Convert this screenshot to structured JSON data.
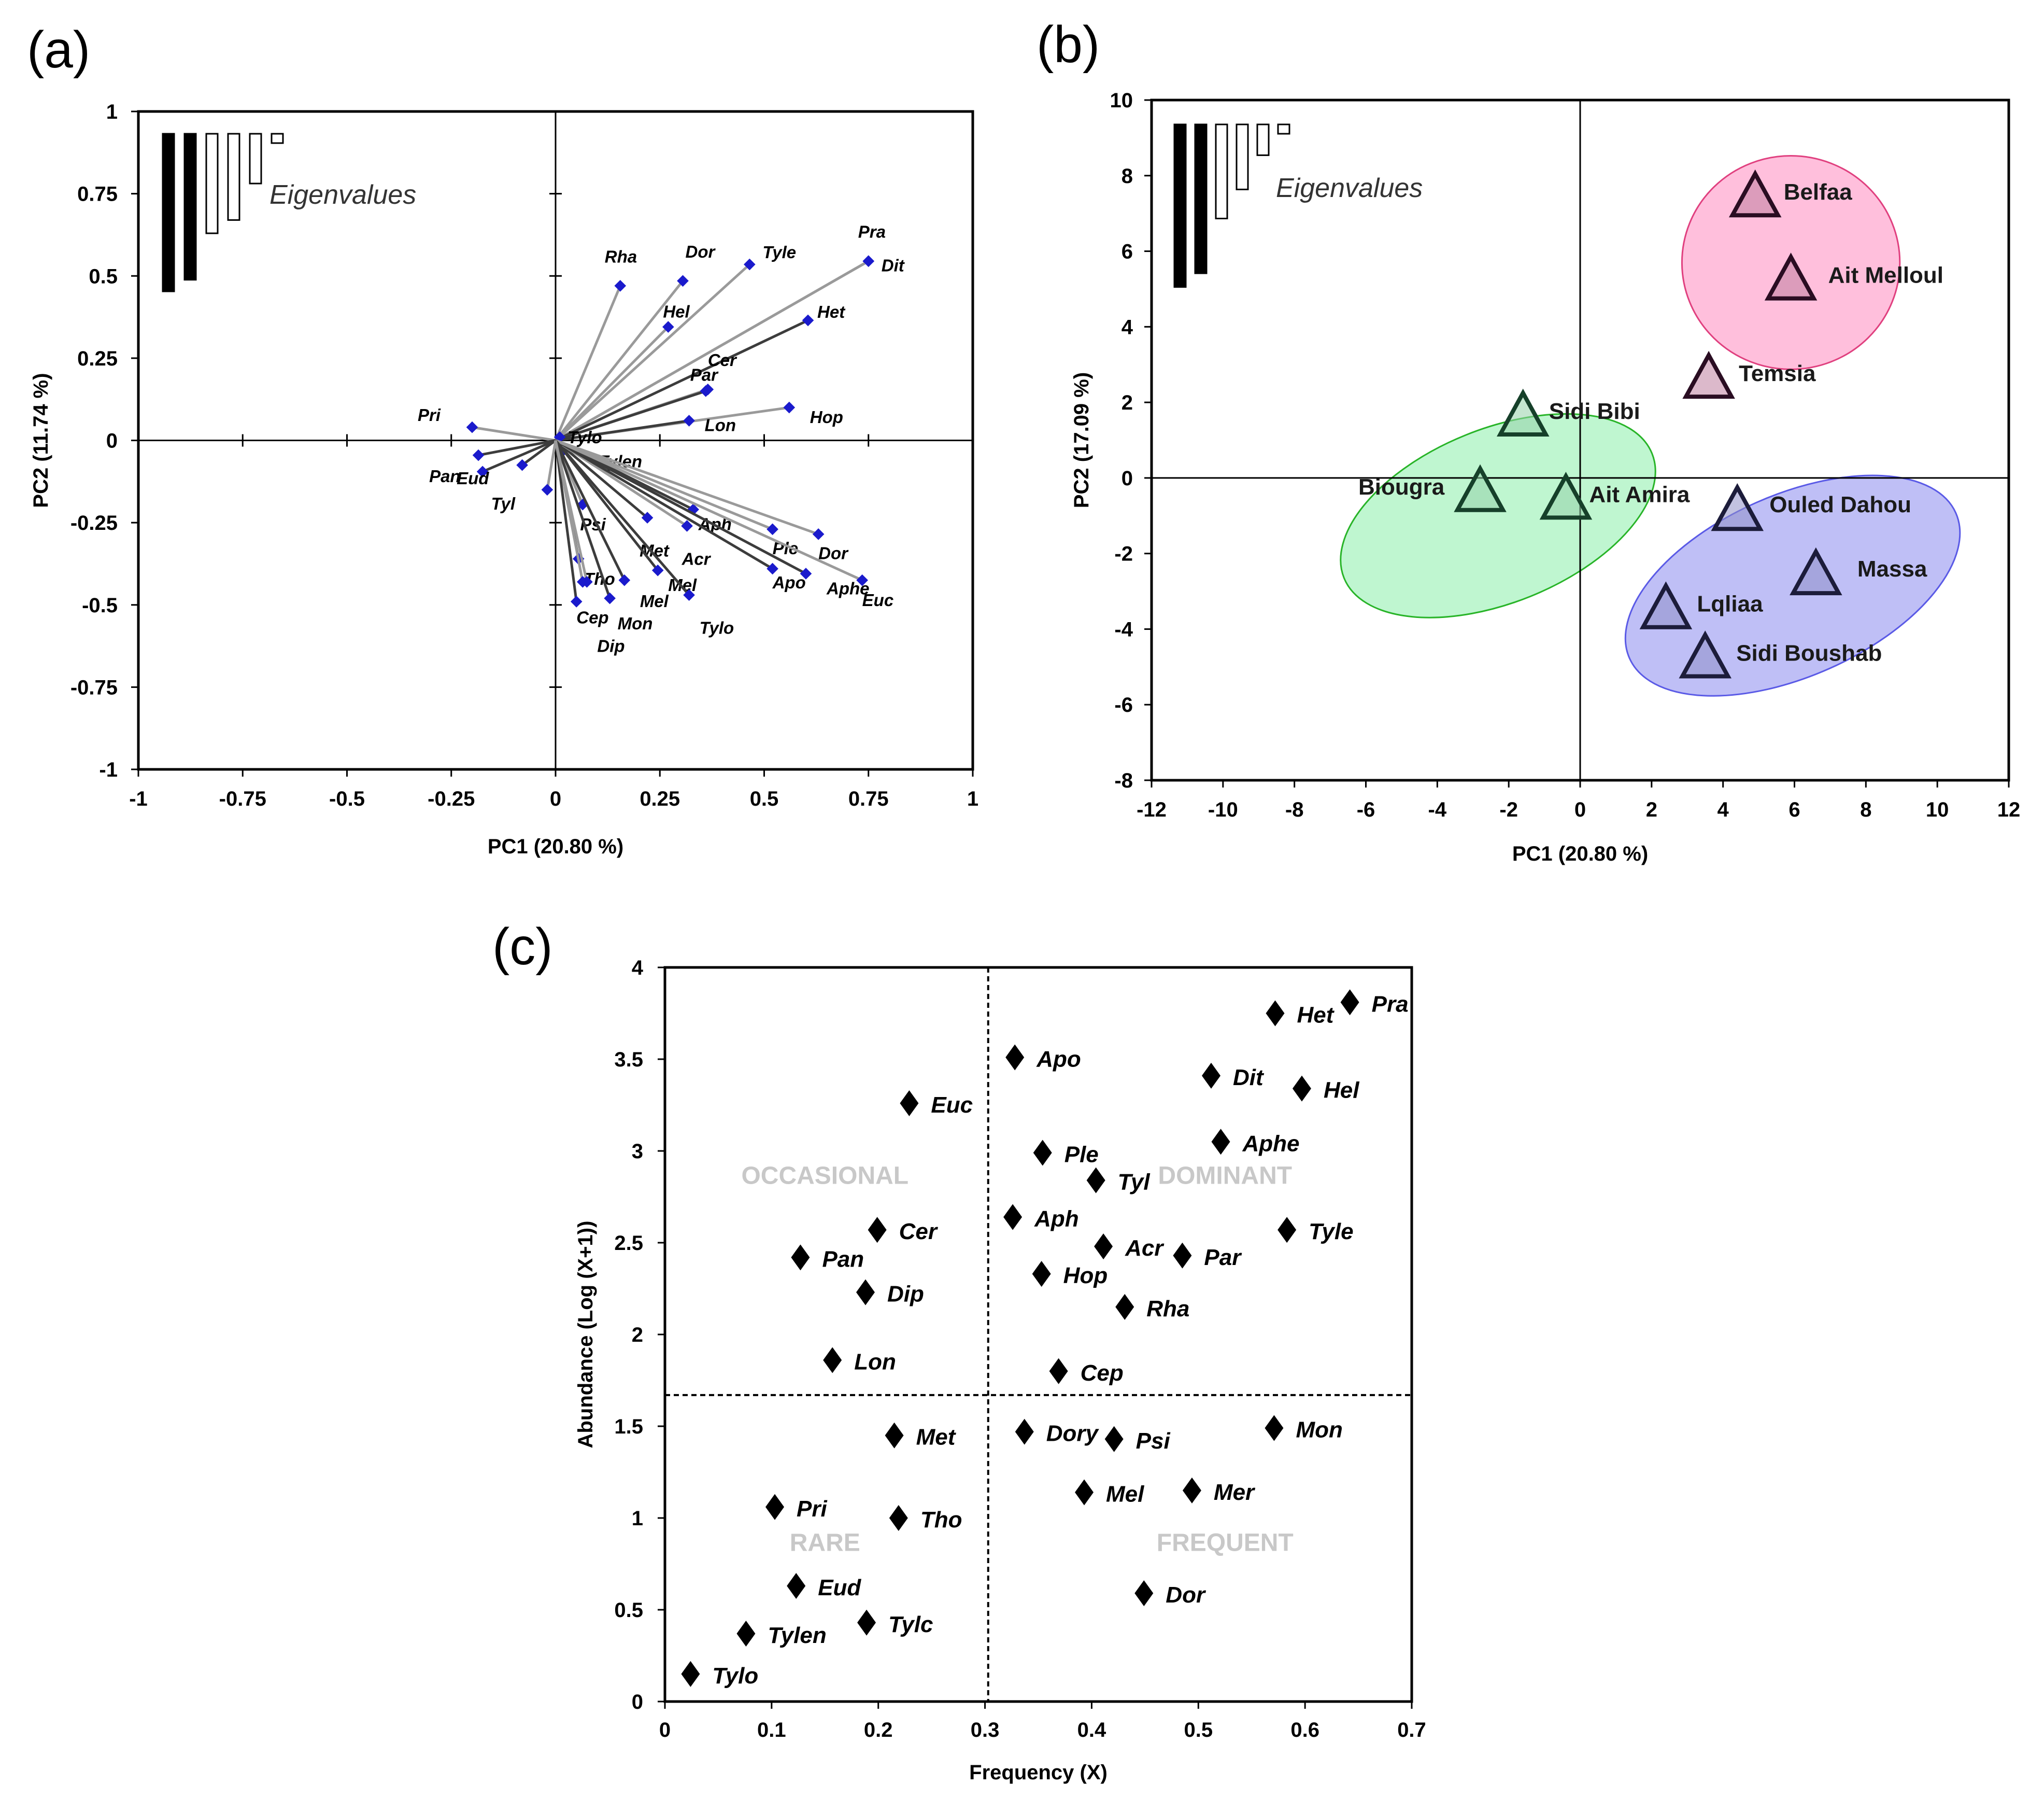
{
  "panels": {
    "a": {
      "letter": "(a)",
      "chart_data": {
        "type": "scatter",
        "subtype": "biplot-vectors",
        "xlabel": "PC1 (20.80 %)",
        "ylabel": "PC2 (11.74 %)",
        "xlim": [
          -1,
          1
        ],
        "ylim": [
          -1,
          1
        ],
        "xticks": [
          -1,
          -0.75,
          -0.5,
          -0.25,
          0,
          0.25,
          0.5,
          0.75,
          1
        ],
        "yticks": [
          -1,
          -0.75,
          -0.5,
          -0.25,
          0,
          0.25,
          0.5,
          0.75,
          1
        ],
        "eigen_label": "Eigenvalues",
        "eigen_bars": [
          0.95,
          0.88,
          0.6,
          0.52,
          0.3,
          0.12
        ],
        "points": [
          {
            "label": "Rha",
            "x": 0.155,
            "y": 0.47
          },
          {
            "label": "Dor",
            "x": 0.305,
            "y": 0.485
          },
          {
            "label": "Tyle",
            "x": 0.465,
            "y": 0.535
          },
          {
            "label": "Pra",
            "x": 0.75,
            "y": 0.545
          },
          {
            "label": "Dit",
            "x": 0.75,
            "y": 0.545
          },
          {
            "label": "Hel",
            "x": 0.27,
            "y": 0.345
          },
          {
            "label": "Het",
            "x": 0.605,
            "y": 0.365
          },
          {
            "label": "Cer",
            "x": 0.365,
            "y": 0.155
          },
          {
            "label": "Par",
            "x": 0.36,
            "y": 0.15
          },
          {
            "label": "Hop",
            "x": 0.56,
            "y": 0.1
          },
          {
            "label": "Lon",
            "x": 0.32,
            "y": 0.06
          },
          {
            "label": "Tylo",
            "x": 0.01,
            "y": 0.01
          },
          {
            "label": "Tylen",
            "x": 0.015,
            "y": -0.035
          },
          {
            "label": "Pri",
            "x": -0.2,
            "y": 0.04
          },
          {
            "label": "Pan",
            "x": -0.185,
            "y": -0.045
          },
          {
            "label": "Eud",
            "x": -0.175,
            "y": -0.095
          },
          {
            "label": "Tyl",
            "x": -0.08,
            "y": -0.075
          },
          {
            "label": "Psi",
            "x": 0.065,
            "y": -0.195
          },
          {
            "label": "Met",
            "x": 0.22,
            "y": -0.235
          },
          {
            "label": "Aph",
            "x": 0.33,
            "y": -0.21
          },
          {
            "label": "Acr",
            "x": 0.315,
            "y": -0.26
          },
          {
            "label": "Ple",
            "x": 0.52,
            "y": -0.27
          },
          {
            "label": "Dor",
            "x": 0.63,
            "y": -0.285
          },
          {
            "label": "Tho",
            "x": 0.055,
            "y": -0.36
          },
          {
            "label": "Mel",
            "x": 0.165,
            "y": -0.425
          },
          {
            "label": "Mel",
            "x": 0.245,
            "y": -0.395
          },
          {
            "label": "Apo",
            "x": 0.52,
            "y": -0.39
          },
          {
            "label": "Aphe",
            "x": 0.6,
            "y": -0.405
          },
          {
            "label": "Euc",
            "x": 0.735,
            "y": -0.425
          },
          {
            "label": "Cep",
            "x": 0.05,
            "y": -0.49
          },
          {
            "label": "Mon",
            "x": 0.13,
            "y": -0.48
          },
          {
            "label": "Tylo",
            "x": 0.32,
            "y": -0.47
          },
          {
            "label": "Dip",
            "x": 0.075,
            "y": -0.43
          },
          {
            "label": "",
            "x": -0.02,
            "y": -0.15
          },
          {
            "label": "",
            "x": 0.065,
            "y": -0.43
          }
        ]
      }
    },
    "b": {
      "letter": "(b)",
      "chart_data": {
        "type": "scatter",
        "subtype": "site-scores",
        "xlabel": "PC1 (20.80 %)",
        "ylabel": "PC2 (17.09 %)",
        "xlim": [
          -12,
          12
        ],
        "ylim": [
          -8,
          10
        ],
        "xticks": [
          -12,
          -10,
          -8,
          -6,
          -4,
          -2,
          0,
          2,
          4,
          6,
          8,
          10,
          12
        ],
        "yticks": [
          -8,
          -6,
          -4,
          -2,
          0,
          2,
          4,
          6,
          8,
          10
        ],
        "eigen_label": "Eigenvalues",
        "eigen_bars": [
          0.95,
          0.87,
          0.55,
          0.38,
          0.18,
          0.06
        ],
        "sites": [
          {
            "label": "Belfaa",
            "x": 4.9,
            "y": 7.5,
            "group": "pink"
          },
          {
            "label": "Ait Melloul",
            "x": 5.9,
            "y": 5.3,
            "group": "pink"
          },
          {
            "label": "Temsia",
            "x": 3.6,
            "y": 2.7,
            "group": "pink"
          },
          {
            "label": "Sidi Bibi",
            "x": -1.6,
            "y": 1.7,
            "group": "green"
          },
          {
            "label": "Biougra",
            "x": -2.8,
            "y": -0.3,
            "group": "green"
          },
          {
            "label": "Ait Amira",
            "x": -0.4,
            "y": -0.5,
            "group": "green"
          },
          {
            "label": "Ouled Dahou",
            "x": 4.4,
            "y": -0.8,
            "group": "blue"
          },
          {
            "label": "Massa",
            "x": 6.6,
            "y": -2.5,
            "group": "blue"
          },
          {
            "label": "Lqliaa",
            "x": 2.4,
            "y": -3.4,
            "group": "blue"
          },
          {
            "label": "Sidi Boushab",
            "x": 3.5,
            "y": -4.7,
            "group": "blue"
          }
        ],
        "groups": [
          {
            "name": "pink",
            "fill": "#ffb4d6",
            "stroke": "#e0407f",
            "cx": 5.9,
            "cy": 5.7,
            "rx": 6.1,
            "ry": 5.65,
            "rot": 0
          },
          {
            "name": "green",
            "fill": "#b4f5c8",
            "stroke": "#28b428",
            "cx": -2.3,
            "cy": -1.0,
            "rx": 9.3,
            "ry": 4.6,
            "rot": 22
          },
          {
            "name": "blue",
            "fill": "#b4b4f5",
            "stroke": "#5a5ae6",
            "cx": 5.95,
            "cy": -2.85,
            "rx": 10.0,
            "ry": 4.8,
            "rot": 24
          }
        ]
      }
    },
    "c": {
      "letter": "(c)",
      "chart_data": {
        "type": "scatter",
        "xlabel": "Frequency (X)",
        "ylabel": "Abundance (Log (X+1))",
        "xlim": [
          0,
          0.7
        ],
        "ylim": [
          0,
          4
        ],
        "xticks": [
          0,
          0.1,
          0.2,
          0.3,
          0.4,
          0.5,
          0.6,
          0.7
        ],
        "yticks": [
          0,
          0.5,
          1,
          1.5,
          2,
          2.5,
          3,
          3.5,
          4
        ],
        "vline": 0.303,
        "hline": 1.67,
        "quadrants": [
          {
            "label": "OCCASIONAL",
            "x": 0.15,
            "y": 2.82
          },
          {
            "label": "DOMINANT",
            "x": 0.525,
            "y": 2.82
          },
          {
            "label": "RARE",
            "x": 0.15,
            "y": 0.82
          },
          {
            "label": "FREQUENT",
            "x": 0.525,
            "y": 0.82
          }
        ],
        "points": [
          {
            "label": "Pra",
            "x": 0.642,
            "y": 3.81
          },
          {
            "label": "Het",
            "x": 0.572,
            "y": 3.75
          },
          {
            "label": "Apo",
            "x": 0.328,
            "y": 3.51
          },
          {
            "label": "Dit",
            "x": 0.512,
            "y": 3.41
          },
          {
            "label": "Hel",
            "x": 0.597,
            "y": 3.34
          },
          {
            "label": "Euc",
            "x": 0.229,
            "y": 3.26
          },
          {
            "label": "Aphe",
            "x": 0.521,
            "y": 3.05
          },
          {
            "label": "Ple",
            "x": 0.354,
            "y": 2.99
          },
          {
            "label": "Tyl",
            "x": 0.404,
            "y": 2.84
          },
          {
            "label": "Aph",
            "x": 0.326,
            "y": 2.64
          },
          {
            "label": "Tyle",
            "x": 0.583,
            "y": 2.57
          },
          {
            "label": "Cer",
            "x": 0.199,
            "y": 2.57
          },
          {
            "label": "Acr",
            "x": 0.411,
            "y": 2.48
          },
          {
            "label": "Par",
            "x": 0.485,
            "y": 2.43
          },
          {
            "label": "Pan",
            "x": 0.127,
            "y": 2.42
          },
          {
            "label": "Hop",
            "x": 0.353,
            "y": 2.33
          },
          {
            "label": "Dip",
            "x": 0.188,
            "y": 2.23
          },
          {
            "label": "Rha",
            "x": 0.431,
            "y": 2.15
          },
          {
            "label": "Lon",
            "x": 0.157,
            "y": 1.86
          },
          {
            "label": "Cep",
            "x": 0.369,
            "y": 1.8
          },
          {
            "label": "Mon",
            "x": 0.571,
            "y": 1.49
          },
          {
            "label": "Dory",
            "x": 0.337,
            "y": 1.47
          },
          {
            "label": "Met",
            "x": 0.215,
            "y": 1.45
          },
          {
            "label": "Psi",
            "x": 0.421,
            "y": 1.43
          },
          {
            "label": "Mel",
            "x": 0.393,
            "y": 1.14
          },
          {
            "label": "Mer",
            "x": 0.494,
            "y": 1.15
          },
          {
            "label": "Pri",
            "x": 0.103,
            "y": 1.06
          },
          {
            "label": "Tho",
            "x": 0.219,
            "y": 1.0
          },
          {
            "label": "Eud",
            "x": 0.123,
            "y": 0.63
          },
          {
            "label": "Dor",
            "x": 0.449,
            "y": 0.59
          },
          {
            "label": "Tylc",
            "x": 0.189,
            "y": 0.43
          },
          {
            "label": "Tylen",
            "x": 0.076,
            "y": 0.37
          },
          {
            "label": "Tylo",
            "x": 0.024,
            "y": 0.15
          }
        ]
      }
    }
  }
}
